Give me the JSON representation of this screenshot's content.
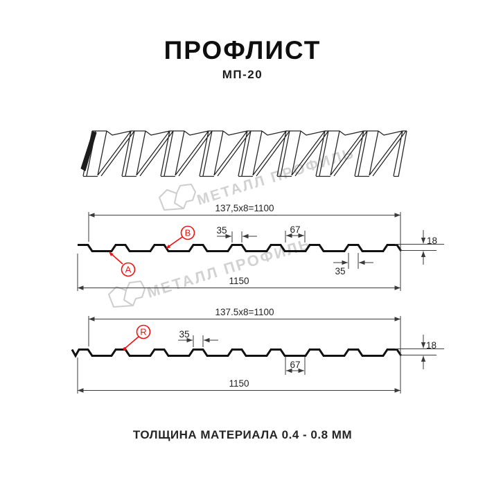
{
  "title": "ПРОФЛИСТ",
  "subtitle": "МП-20",
  "footer_note": "ТОЛЩИНА МАТЕРИАЛА 0.4 - 0.8 ММ",
  "watermark": {
    "brand": "МЕТАЛЛ ПРОФИЛЬ"
  },
  "colors": {
    "accent_red": "#ee1111",
    "line_black": "#111111",
    "watermark_gray": "#d2d2d2"
  },
  "section_top": {
    "coverage_width": "137,5x8=1100",
    "overall_width": "1150",
    "rib_width_top": "35",
    "valley_width": "67",
    "rib_width_bottom": "35",
    "profile_height": "18",
    "label_a": "A",
    "label_b": "B"
  },
  "section_bottom": {
    "coverage_width": "137.5x8=1100",
    "overall_width": "1150",
    "rib_width": "35",
    "valley_width": "67",
    "profile_height": "18",
    "label_r": "R"
  }
}
